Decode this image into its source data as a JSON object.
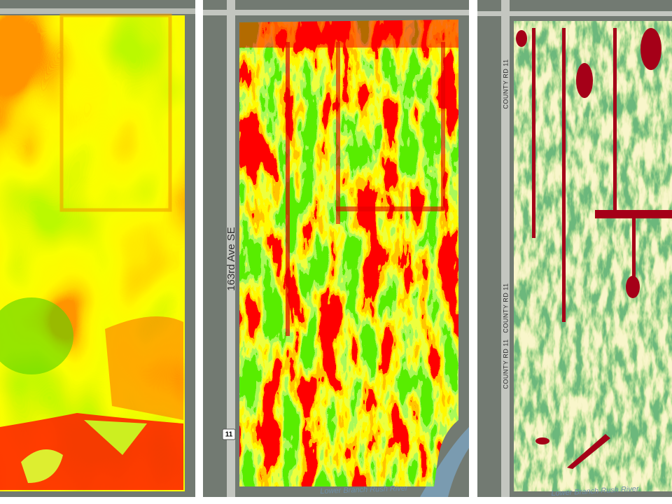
{
  "panels": [
    {},
    {
      "road_label": "163rd Ave SE",
      "shield": "11",
      "river_label": "Lower Branch Rush River"
    },
    {
      "road_labels": [
        "COUNTY RD 11",
        "COUNTY RD 11",
        "COUNTY RD 11"
      ],
      "river_label": "Lower Branch Rush River"
    }
  ]
}
